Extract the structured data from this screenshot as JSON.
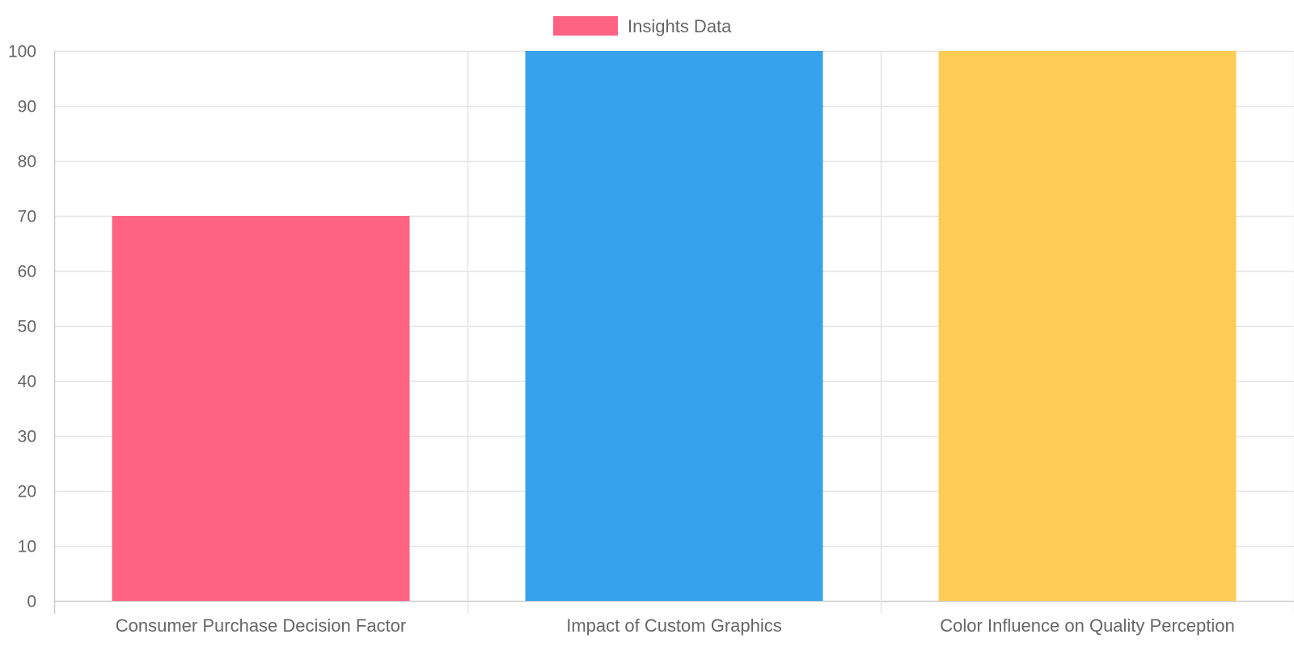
{
  "chart_data": {
    "type": "bar",
    "categories": [
      "Consumer Purchase Decision Factor",
      "Impact of Custom Graphics",
      "Color Influence on Quality Perception"
    ],
    "series": [
      {
        "name": "Insights Data",
        "values": [
          70,
          100,
          100
        ]
      }
    ],
    "bar_colors": [
      "#ff6384",
      "#36a2eb",
      "#ffcd56"
    ],
    "legend": {
      "position": "top",
      "label": "Insights Data",
      "swatch_color": "#ff6384"
    },
    "ylim": [
      0,
      100
    ],
    "yticks": [
      "0",
      "10",
      "20",
      "30",
      "40",
      "50",
      "60",
      "70",
      "80",
      "90",
      "100"
    ],
    "grid": true,
    "grid_color": "#e5e5e5",
    "axis_color": "#cccccc",
    "text_color": "#666666"
  }
}
